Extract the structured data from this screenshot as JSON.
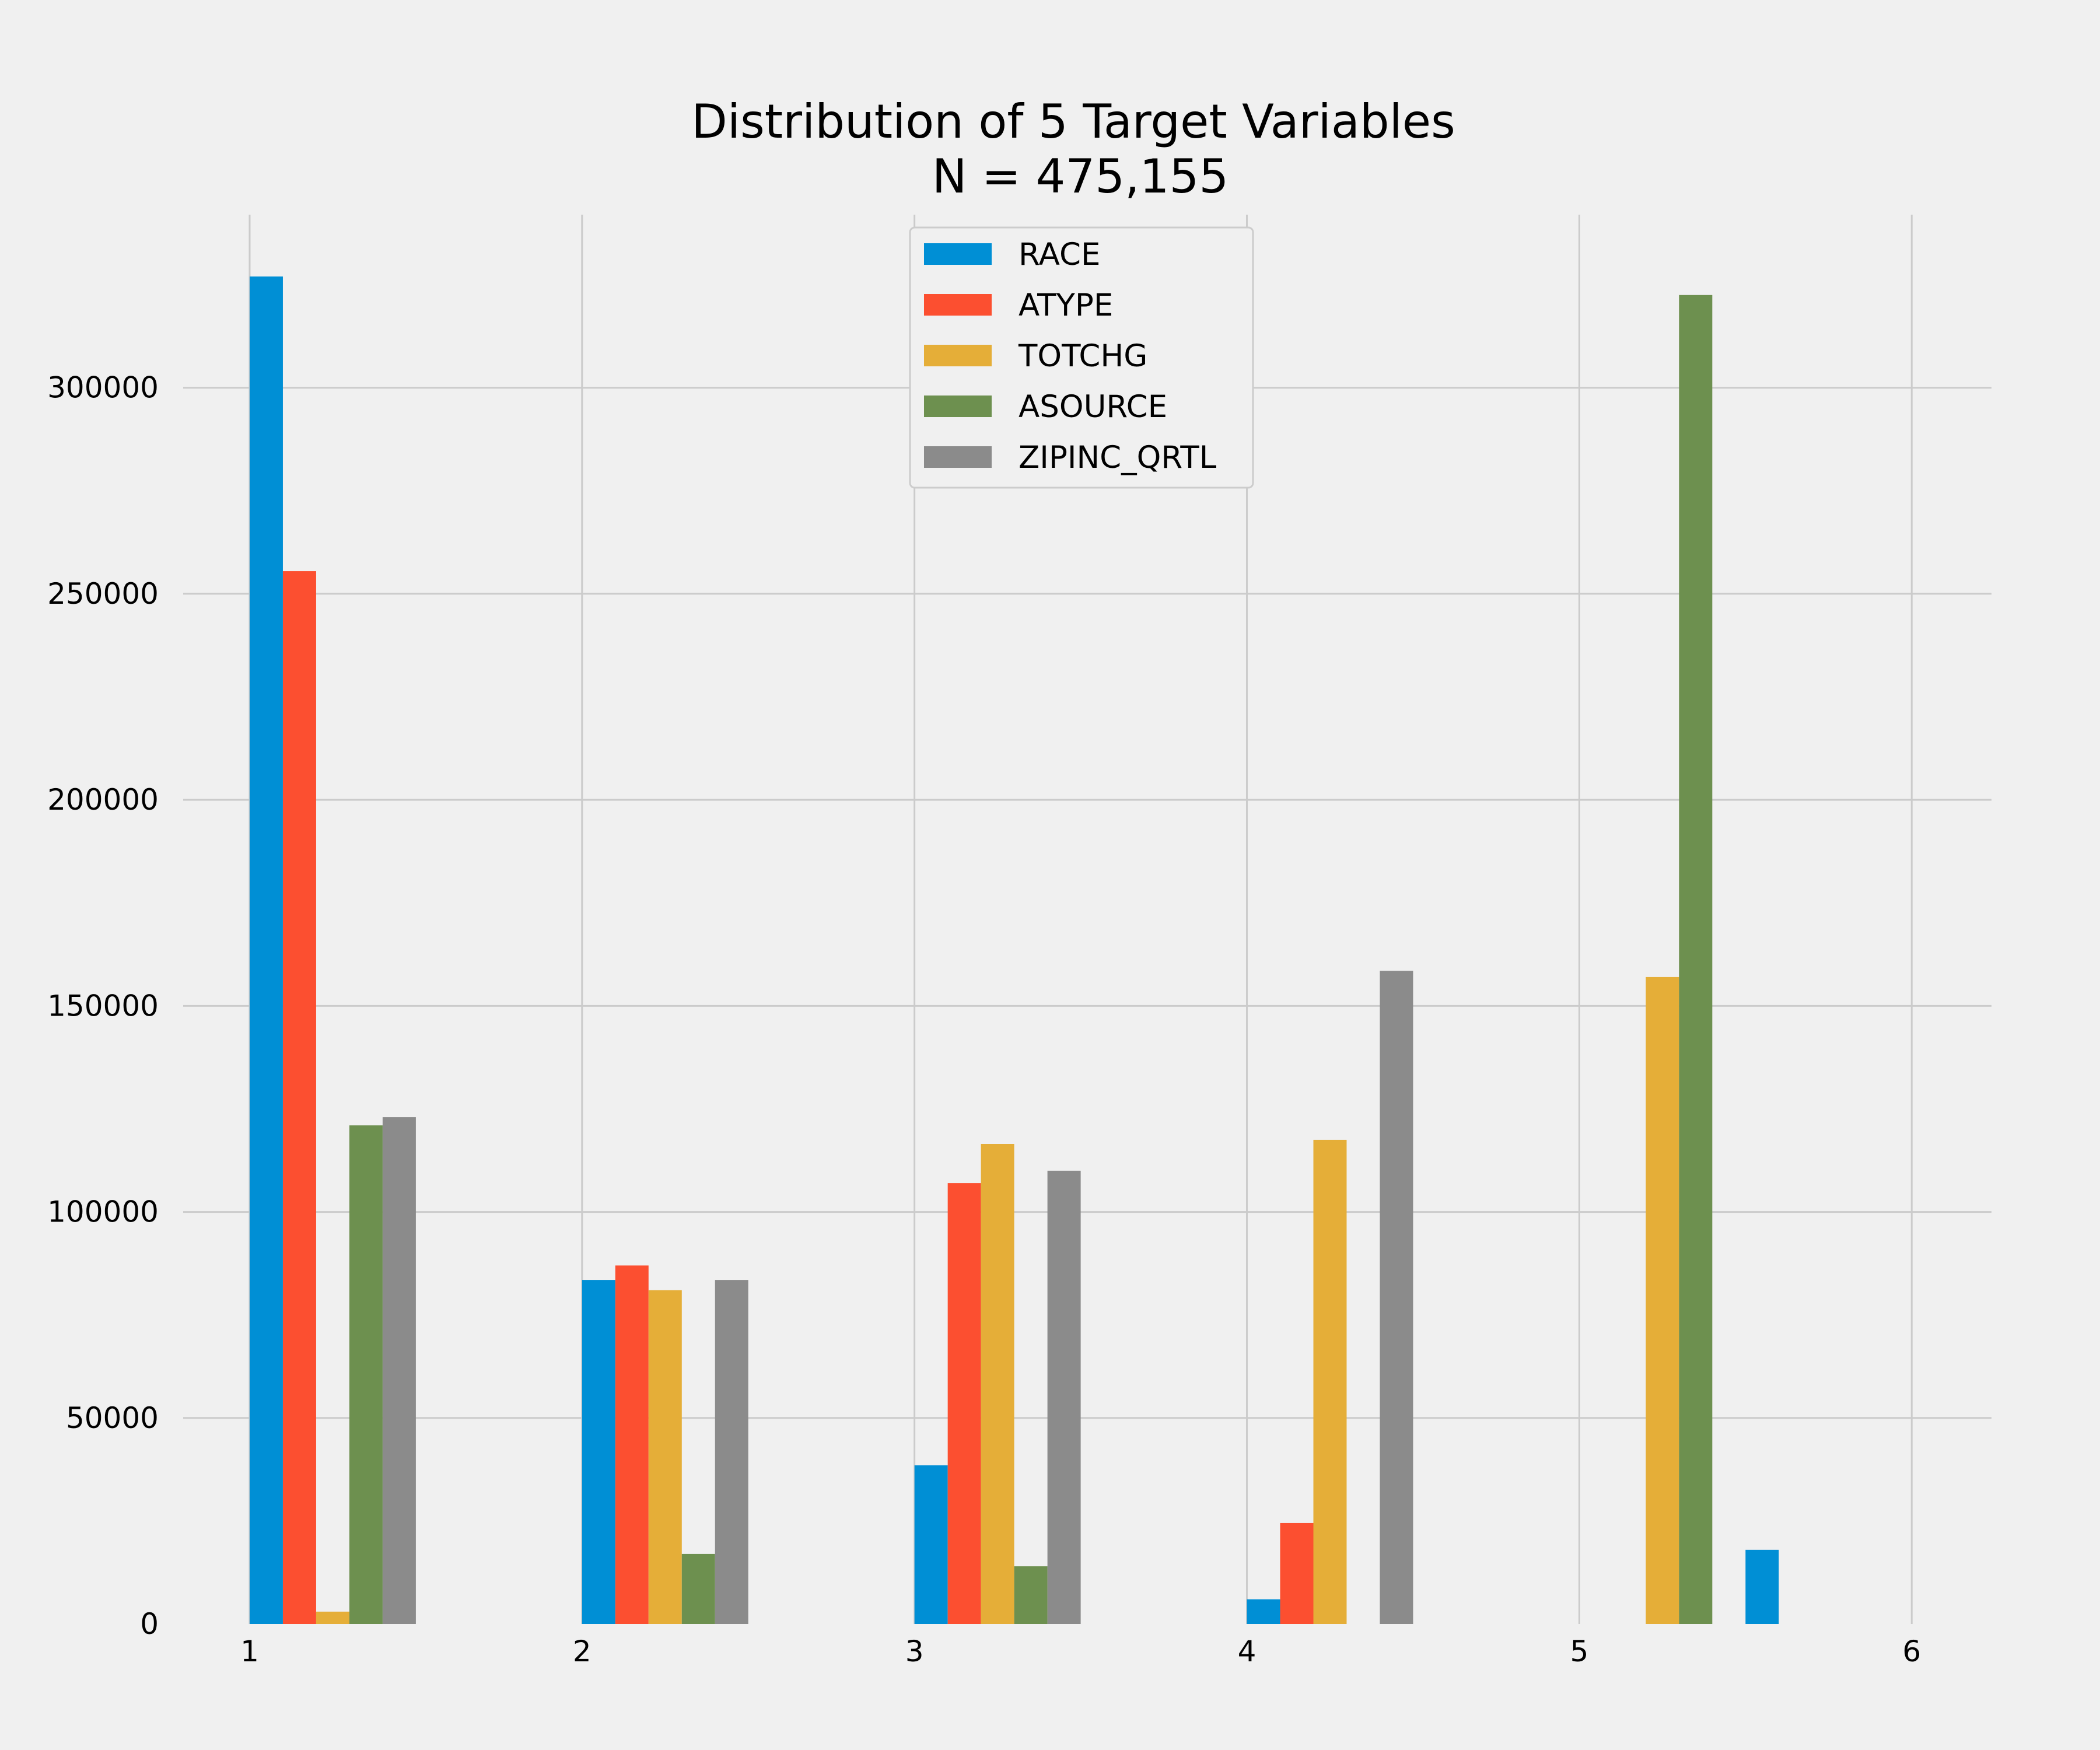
{
  "chart_data": {
    "type": "bar",
    "title": "Distribution of 5 Target Variables",
    "subtitle": "N = 475,155",
    "xlabel": "",
    "ylabel": "",
    "x_ticks": [
      "1",
      "2",
      "3",
      "4",
      "5",
      "6"
    ],
    "y_ticks": [
      "0",
      "50000",
      "100000",
      "150000",
      "200000",
      "250000",
      "300000"
    ],
    "xlim": [
      0.8,
      6.24
    ],
    "ylim": [
      0,
      342000
    ],
    "grid": true,
    "legend_position": "top-center",
    "bar_width": 0.1,
    "series": [
      {
        "name": "RACE",
        "color": "#008fd5",
        "points": [
          {
            "x": 1.0,
            "value": 327000
          },
          {
            "x": 2.0,
            "value": 83500
          },
          {
            "x": 3.0,
            "value": 38500
          },
          {
            "x": 4.0,
            "value": 6000
          },
          {
            "x": 5.5,
            "value": 18000
          }
        ]
      },
      {
        "name": "ATYPE",
        "color": "#fc4f30",
        "points": [
          {
            "x": 1.1,
            "value": 255500
          },
          {
            "x": 2.1,
            "value": 87000
          },
          {
            "x": 3.1,
            "value": 107000
          },
          {
            "x": 4.1,
            "value": 24500
          }
        ]
      },
      {
        "name": "TOTCHG",
        "color": "#e5ae38",
        "points": [
          {
            "x": 1.2,
            "value": 3000
          },
          {
            "x": 2.2,
            "value": 81000
          },
          {
            "x": 3.2,
            "value": 116500
          },
          {
            "x": 4.2,
            "value": 117500
          },
          {
            "x": 5.2,
            "value": 157000
          }
        ]
      },
      {
        "name": "ASOURCE",
        "color": "#6d904f",
        "points": [
          {
            "x": 1.3,
            "value": 121000
          },
          {
            "x": 2.3,
            "value": 17000
          },
          {
            "x": 3.3,
            "value": 14000
          },
          {
            "x": 5.3,
            "value": 322500
          }
        ]
      },
      {
        "name": "ZIPINC_QRTL",
        "color": "#8b8b8b",
        "points": [
          {
            "x": 1.4,
            "value": 123000
          },
          {
            "x": 2.4,
            "value": 83500
          },
          {
            "x": 3.4,
            "value": 110000
          },
          {
            "x": 4.4,
            "value": 158500
          }
        ]
      }
    ]
  }
}
